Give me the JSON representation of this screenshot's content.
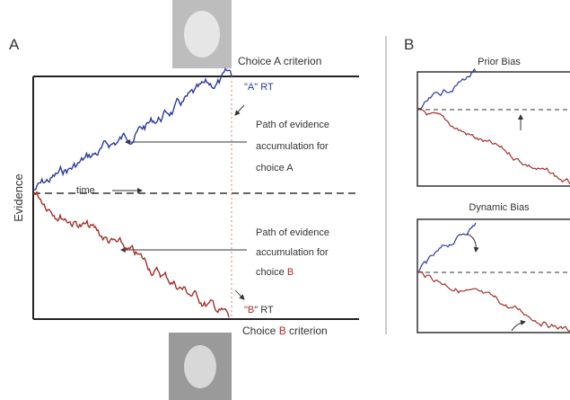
{
  "panel_a": {
    "label": "A",
    "y_axis_label": "Evidence",
    "time_label": "time",
    "choice_a_criterion": "Choice A criterion",
    "a_rt": "\"A\" RT",
    "path_a_note": [
      "Path of evidence",
      "accumulation for",
      "choice A"
    ],
    "path_b_note": {
      "lines": [
        "Path of evidence",
        "accumulation for"
      ],
      "last_line": [
        "choice ",
        "B"
      ]
    },
    "b_rt": [
      "\"",
      "B",
      "\" RT"
    ],
    "choice_b_criterion": [
      "Choice ",
      "B",
      " criterion"
    ]
  },
  "panel_b": {
    "label": "B",
    "prior_bias": "Prior Bias",
    "dynamic_bias": "Dynamic Bias"
  }
}
